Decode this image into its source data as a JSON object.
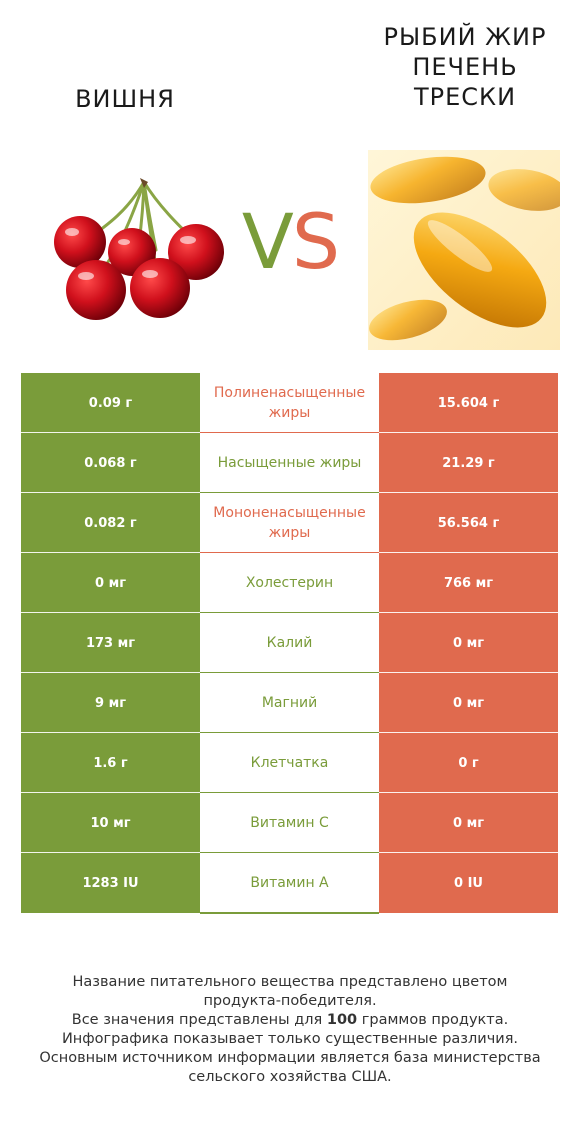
{
  "left_product": {
    "name": "ВИШНЯ",
    "color": "#7a9c3a"
  },
  "right_product": {
    "name": "РЫБИЙ ЖИР ПЕЧЕНЬ ТРЕСКИ",
    "name_lines": "РЫБИЙ ЖИР\nПЕЧЕНЬ\nТРЕСКИ",
    "color": "#e06a4e"
  },
  "vs": {
    "v": "V",
    "s": "S"
  },
  "rows": [
    {
      "left": "0.09 г",
      "nutrient": "Полиненасыщенные жиры",
      "right": "15.604 г",
      "winner": "right"
    },
    {
      "left": "0.068 г",
      "nutrient": "Насыщенные жиры",
      "right": "21.29 г",
      "winner": "left"
    },
    {
      "left": "0.082 г",
      "nutrient": "Мононенасыщенные жиры",
      "right": "56.564 г",
      "winner": "right"
    },
    {
      "left": "0 мг",
      "nutrient": "Холестерин",
      "right": "766 мг",
      "winner": "left"
    },
    {
      "left": "173 мг",
      "nutrient": "Калий",
      "right": "0 мг",
      "winner": "left"
    },
    {
      "left": "9 мг",
      "nutrient": "Магний",
      "right": "0 мг",
      "winner": "left"
    },
    {
      "left": "1.6 г",
      "nutrient": "Клетчатка",
      "right": "0 г",
      "winner": "left"
    },
    {
      "left": "10 мг",
      "nutrient": "Витамин C",
      "right": "0 мг",
      "winner": "left"
    },
    {
      "left": "1283 IU",
      "nutrient": "Витамин A",
      "right": "0 IU",
      "winner": "left"
    }
  ],
  "footer": {
    "line1": "Название питательного вещества представлено цветом",
    "line2": "продукта-победителя.",
    "line3_pre": "Все значения представлены для ",
    "line3_bold": "100",
    "line3_post": " граммов продукта.",
    "line4": "Инфографика показывает только существенные различия.",
    "line5": "Основным источником информации является база министерства",
    "line6": "сельского хозяйства США."
  }
}
